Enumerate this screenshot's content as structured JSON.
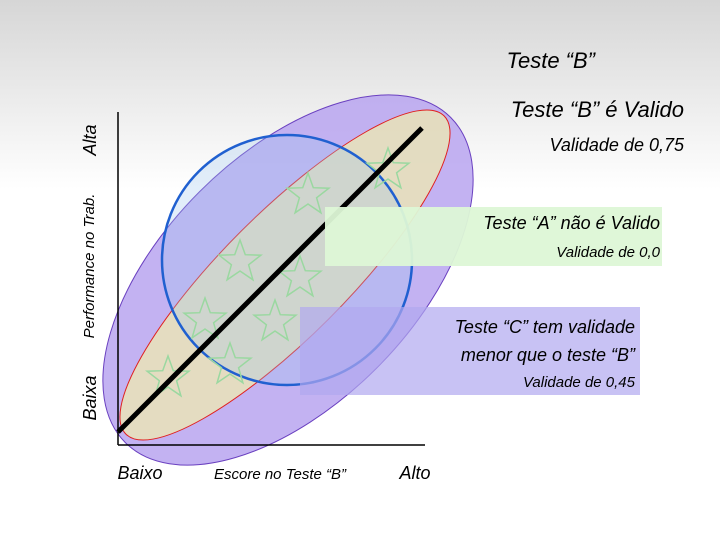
{
  "title": "Teste “B”",
  "axes": {
    "y_high": "Alta",
    "y_label": "Performance no Trab.",
    "y_low": "Baixa",
    "x_low": "Baixo",
    "x_label": "Escore no Teste “B”",
    "x_high": "Alto"
  },
  "notes": [
    {
      "lines": [
        "Teste “B” é Valido"
      ],
      "detail": "Validade de 0,75"
    },
    {
      "lines": [
        "Teste “A” não é Valido"
      ],
      "detail": "Validade de 0,0"
    },
    {
      "lines": [
        "Teste “C” tem validade",
        "menor que o teste “B”"
      ],
      "detail": "Validade de 0,45"
    }
  ]
}
